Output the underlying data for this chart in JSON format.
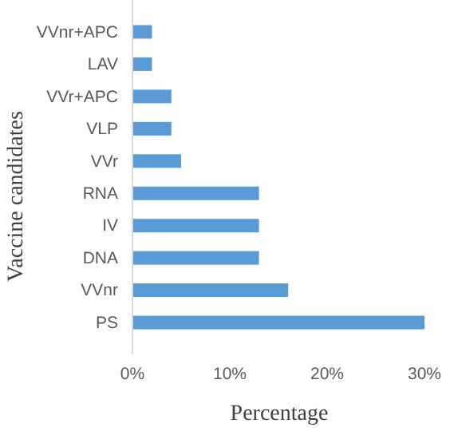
{
  "chart_data": {
    "type": "bar",
    "orientation": "horizontal",
    "xlabel": "Percentage",
    "ylabel": "Vaccine candidates",
    "categories": [
      "VVnr+APC",
      "LAV",
      "VVr+APC",
      "VLP",
      "VVr",
      "RNA",
      "IV",
      "DNA",
      "VVnr",
      "PS"
    ],
    "values": [
      2,
      2,
      4,
      4,
      5,
      13,
      13,
      13,
      16,
      30
    ],
    "color": "#5b9bd5",
    "xlim": [
      0,
      30
    ],
    "xticks": [
      {
        "value": 0,
        "label": "0%"
      },
      {
        "value": 10,
        "label": "10%"
      },
      {
        "value": 20,
        "label": "20%"
      },
      {
        "value": 30,
        "label": "30%"
      }
    ],
    "grid": false
  }
}
